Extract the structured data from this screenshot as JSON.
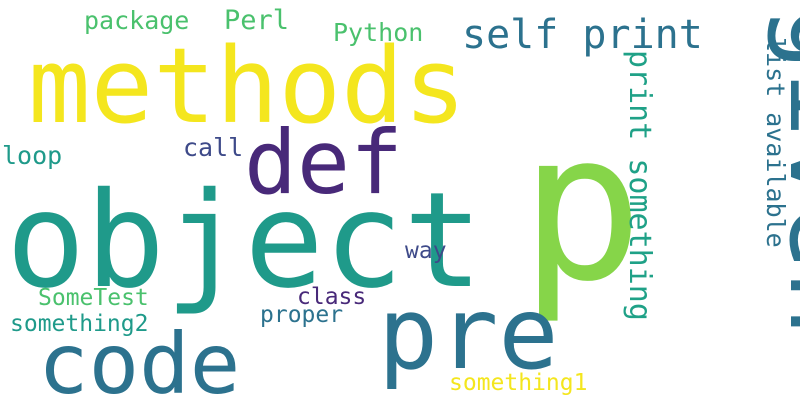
{
  "words": [
    {
      "text": "p",
      "color": "#86d549"
    },
    {
      "text": "object",
      "color": "#1f9a8a"
    },
    {
      "text": "methods",
      "color": "#f4e61e"
    },
    {
      "text": "given",
      "color": "#2c728e"
    },
    {
      "text": "pre",
      "color": "#2c728e"
    },
    {
      "text": "code",
      "color": "#2c728e"
    },
    {
      "text": "def",
      "color": "#482979"
    },
    {
      "text": "self print",
      "color": "#2c728e"
    },
    {
      "text": "print something",
      "color": "#1fa187"
    },
    {
      "text": "list available",
      "color": "#2c728e"
    },
    {
      "text": "package",
      "color": "#4ac16d"
    },
    {
      "text": "Perl",
      "color": "#4ac16d"
    },
    {
      "text": "Python",
      "color": "#4ac16d"
    },
    {
      "text": "call",
      "color": "#3e4a89"
    },
    {
      "text": "loop",
      "color": "#1f9a8a"
    },
    {
      "text": "way",
      "color": "#3e4a89"
    },
    {
      "text": "SomeTest",
      "color": "#4ac16d"
    },
    {
      "text": "class",
      "color": "#482979"
    },
    {
      "text": "proper",
      "color": "#2c728e"
    },
    {
      "text": "something2",
      "color": "#1f9a8a"
    },
    {
      "text": "something1",
      "color": "#f4e61e"
    }
  ]
}
